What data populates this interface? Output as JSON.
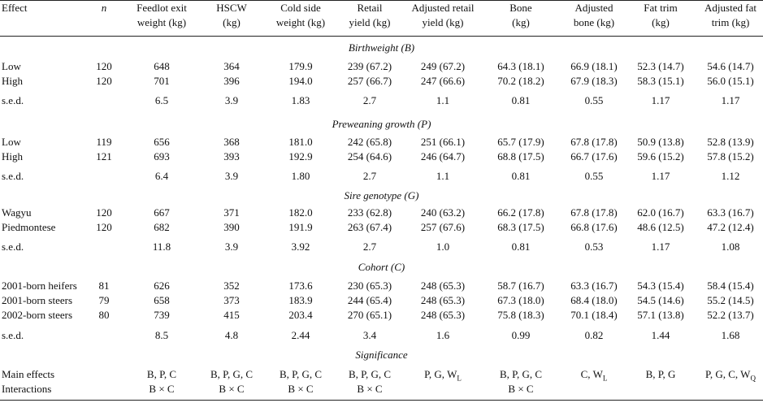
{
  "columns": [
    "Effect",
    "n",
    "Feedlot exit\nweight (kg)",
    "HSCW\n(kg)",
    "Cold side\nweight (kg)",
    "Retail\nyield (kg)",
    "Adjusted retail\nyield (kg)",
    "Bone\n(kg)",
    "Adjusted\nbone (kg)",
    "Fat trim\n(kg)",
    "Adjusted fat\ntrim (kg)"
  ],
  "sections": [
    {
      "title": "Birthweight (B)",
      "rows": [
        [
          "Low",
          "120",
          "648",
          "364",
          "179.9",
          "239 (67.2)",
          "249 (67.2)",
          "64.3 (18.1)",
          "66.9 (18.1)",
          "52.3 (14.7)",
          "54.6 (14.7)"
        ],
        [
          "High",
          "120",
          "701",
          "396",
          "194.0",
          "257 (66.7)",
          "247 (66.6)",
          "70.2 (18.2)",
          "67.9 (18.3)",
          "58.3 (15.1)",
          "56.0 (15.1)"
        ],
        [
          "s.e.d.",
          "",
          "6.5",
          "3.9",
          "1.83",
          "2.7",
          "1.1",
          "0.81",
          "0.55",
          "1.17",
          "1.17"
        ]
      ]
    },
    {
      "title": "Preweaning growth (P)",
      "rows": [
        [
          "Low",
          "119",
          "656",
          "368",
          "181.0",
          "242 (65.8)",
          "251 (66.1)",
          "65.7 (17.9)",
          "67.8 (17.8)",
          "50.9 (13.8)",
          "52.8 (13.9)"
        ],
        [
          "High",
          "121",
          "693",
          "393",
          "192.9",
          "254 (64.6)",
          "246 (64.7)",
          "68.8 (17.5)",
          "66.7 (17.6)",
          "59.6 (15.2)",
          "57.8 (15.2)"
        ],
        [
          "s.e.d.",
          "",
          "6.4",
          "3.9",
          "1.80",
          "2.7",
          "1.1",
          "0.81",
          "0.55",
          "1.17",
          "1.12"
        ]
      ]
    },
    {
      "title": "Sire genotype (G)",
      "rows": [
        [
          "Wagyu",
          "120",
          "667",
          "371",
          "182.0",
          "233 (62.8)",
          "240 (63.2)",
          "66.2 (17.8)",
          "67.8 (17.8)",
          "62.0 (16.7)",
          "63.3 (16.7)"
        ],
        [
          "Piedmontese",
          "120",
          "682",
          "390",
          "191.9",
          "263 (67.4)",
          "257 (67.6)",
          "68.3 (17.5)",
          "66.8 (17.6)",
          "48.6 (12.5)",
          "47.2 (12.4)"
        ],
        [
          "s.e.d.",
          "",
          "11.8",
          "3.9",
          "3.92",
          "2.7",
          "1.0",
          "0.81",
          "0.53",
          "1.17",
          "1.08"
        ]
      ]
    },
    {
      "title": "Cohort (C)",
      "rows": [
        [
          "2001-born heifers",
          "81",
          "626",
          "352",
          "173.6",
          "230 (65.3)",
          "248 (65.3)",
          "58.7 (16.7)",
          "63.3 (16.7)",
          "54.3 (15.4)",
          "58.4 (15.4)"
        ],
        [
          "2001-born steers",
          "79",
          "658",
          "373",
          "183.9",
          "244 (65.4)",
          "248 (65.3)",
          "67.3 (18.0)",
          "68.4 (18.0)",
          "54.5 (14.6)",
          "55.2 (14.5)"
        ],
        [
          "2002-born steers",
          "80",
          "739",
          "415",
          "203.4",
          "270 (65.1)",
          "248 (65.3)",
          "75.8 (18.3)",
          "70.1 (18.4)",
          "57.1 (13.8)",
          "52.2 (13.7)"
        ],
        [
          "s.e.d.",
          "",
          "8.5",
          "4.8",
          "2.44",
          "3.4",
          "1.6",
          "0.99",
          "0.82",
          "1.44",
          "1.68"
        ]
      ]
    },
    {
      "title": "Significance",
      "rows": [
        [
          "Main effects",
          "",
          "B, P, C",
          "B, P, G, C",
          "B, P, G, C",
          "B, P, G, C",
          "P, G, W_L",
          "B, P, G, C",
          "C, W_L",
          "B, P, G",
          "P, G, C, W_Q"
        ],
        [
          "Interactions",
          "",
          "B × C",
          "B × C",
          "B × C",
          "B × C",
          "",
          "B × C",
          "",
          "",
          ""
        ]
      ]
    }
  ]
}
